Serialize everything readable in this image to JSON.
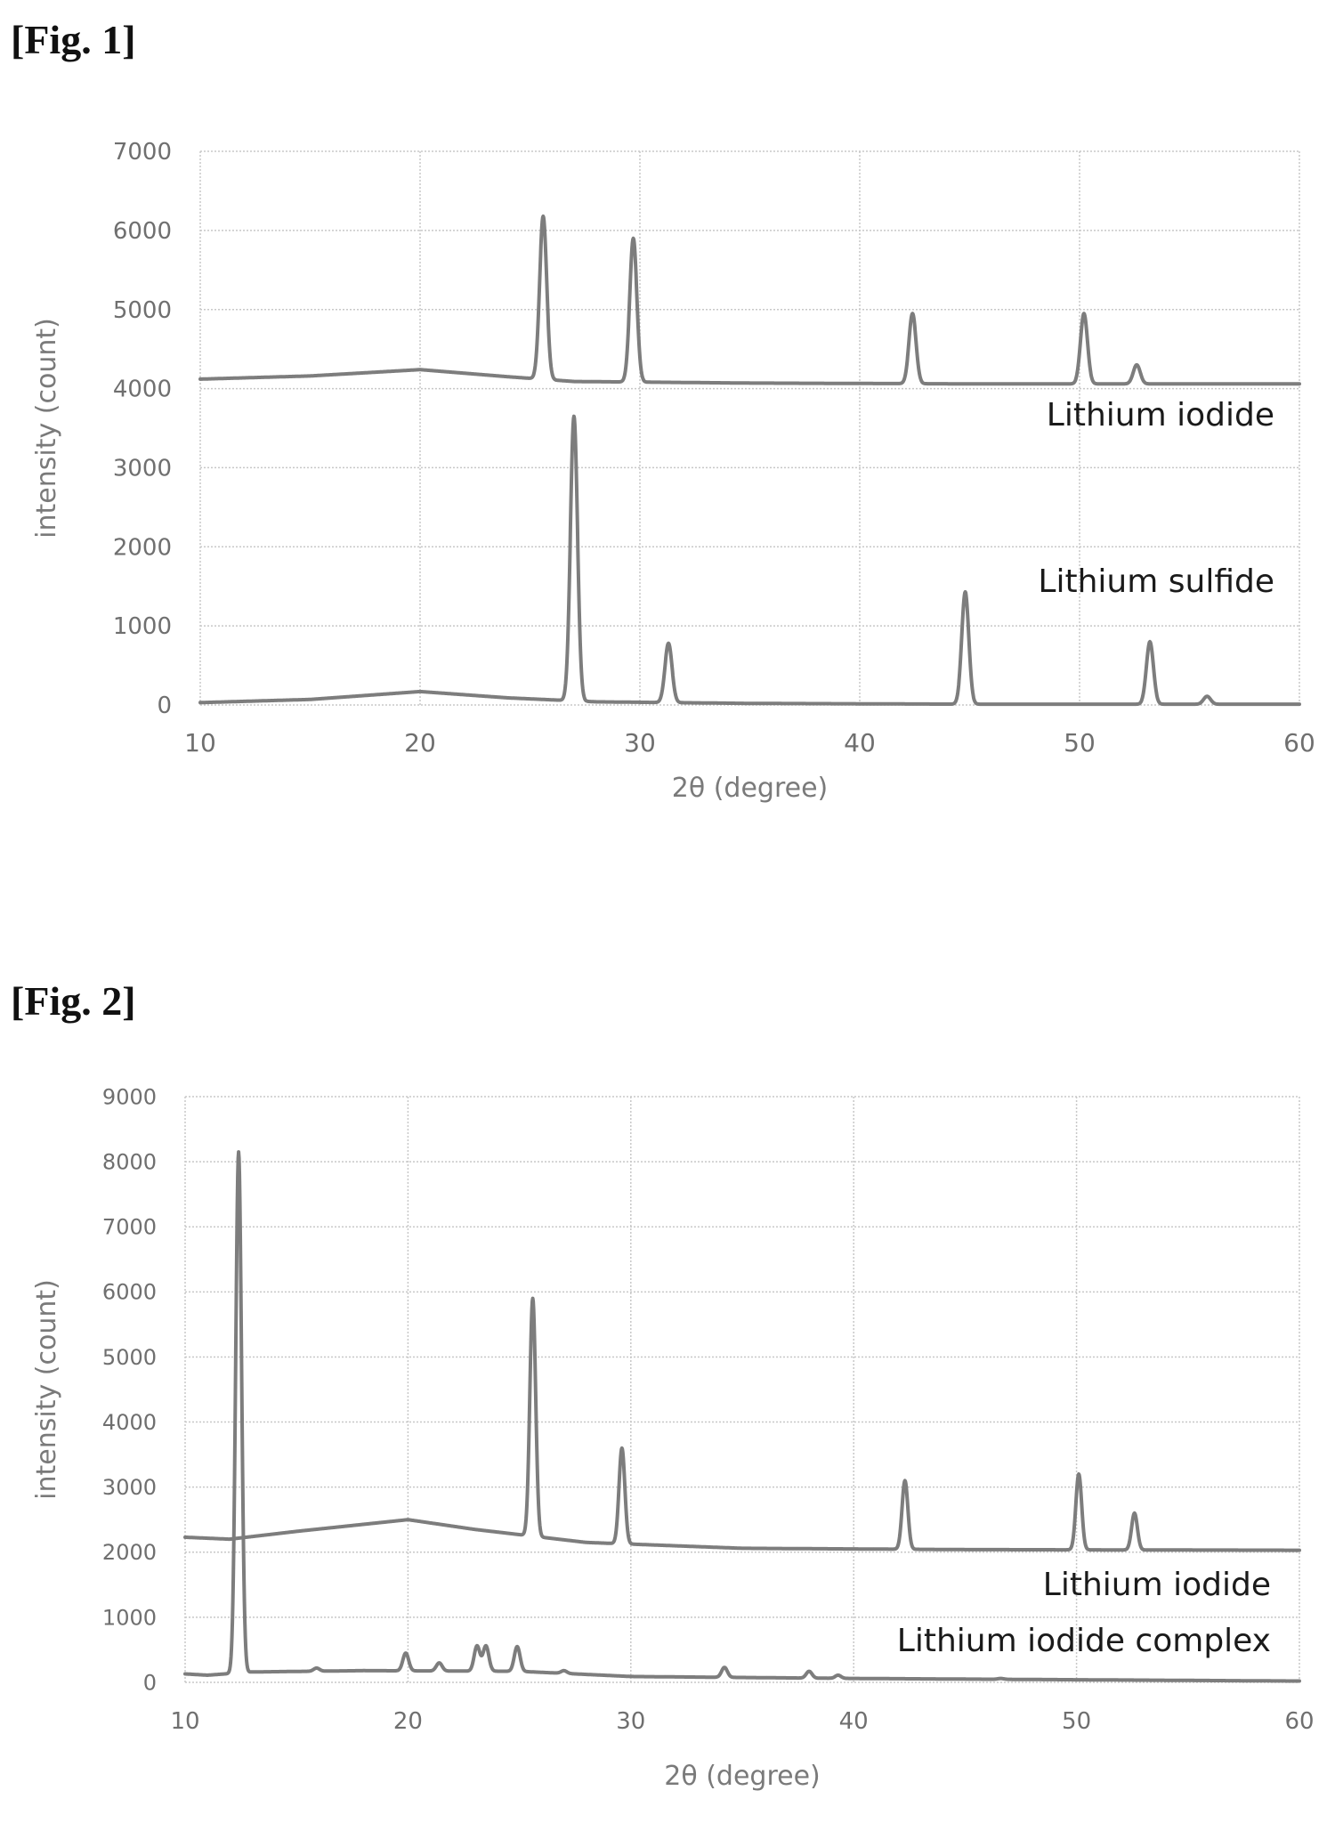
{
  "figures": [
    {
      "label": "[Fig. 1]"
    },
    {
      "label": "[Fig. 2]"
    }
  ],
  "chart_data": [
    {
      "type": "line",
      "title": "",
      "xlabel": "2θ (degree)",
      "ylabel": "intensity (count)",
      "xlim": [
        10,
        60
      ],
      "ylim": [
        0,
        7000
      ],
      "xticks": [
        10,
        20,
        30,
        40,
        50,
        60
      ],
      "yticks": [
        0,
        1000,
        2000,
        3000,
        4000,
        5000,
        6000,
        7000
      ],
      "grid": true,
      "series": [
        {
          "name": "Lithium iodide",
          "color": "#7d7d7d",
          "baseline": [
            [
              10,
              4120
            ],
            [
              15,
              4160
            ],
            [
              20,
              4240
            ],
            [
              24,
              4150
            ],
            [
              27,
              4090
            ],
            [
              35,
              4070
            ],
            [
              45,
              4060
            ],
            [
              60,
              4060
            ]
          ],
          "peaks": [
            [
              25.6,
              6180
            ],
            [
              29.7,
              5900
            ],
            [
              42.4,
              4950
            ],
            [
              50.2,
              4950
            ],
            [
              52.6,
              4300
            ]
          ]
        },
        {
          "name": "Lithium sulfide",
          "color": "#7d7d7d",
          "baseline": [
            [
              10,
              30
            ],
            [
              15,
              70
            ],
            [
              20,
              170
            ],
            [
              24,
              90
            ],
            [
              28,
              40
            ],
            [
              35,
              20
            ],
            [
              45,
              10
            ],
            [
              60,
              10
            ]
          ],
          "peaks": [
            [
              27.0,
              3650
            ],
            [
              31.3,
              780
            ],
            [
              44.8,
              1430
            ],
            [
              53.2,
              800
            ],
            [
              55.8,
              110
            ]
          ]
        }
      ]
    },
    {
      "type": "line",
      "title": "",
      "xlabel": "2θ (degree)",
      "ylabel": "intensity (count)",
      "xlim": [
        10,
        60
      ],
      "ylim": [
        0,
        9000
      ],
      "xticks": [
        10,
        20,
        30,
        40,
        50,
        60
      ],
      "yticks": [
        0,
        1000,
        2000,
        3000,
        4000,
        5000,
        6000,
        7000,
        8000,
        9000
      ],
      "grid": true,
      "series": [
        {
          "name": "Lithium iodide",
          "color": "#7d7d7d",
          "baseline": [
            [
              10,
              2230
            ],
            [
              12,
              2200
            ],
            [
              15,
              2320
            ],
            [
              20,
              2500
            ],
            [
              23,
              2350
            ],
            [
              28,
              2150
            ],
            [
              35,
              2060
            ],
            [
              45,
              2040
            ],
            [
              60,
              2030
            ]
          ],
          "peaks": [
            [
              25.6,
              5900
            ],
            [
              29.6,
              3600
            ],
            [
              42.3,
              3100
            ],
            [
              50.1,
              3200
            ],
            [
              52.6,
              2600
            ]
          ]
        },
        {
          "name": "Lithium iodide complex",
          "color": "#7d7d7d",
          "baseline": [
            [
              10,
              130
            ],
            [
              11,
              110
            ],
            [
              13,
              160
            ],
            [
              18,
              180
            ],
            [
              25,
              170
            ],
            [
              30,
              90
            ],
            [
              40,
              60
            ],
            [
              50,
              40
            ],
            [
              60,
              20
            ]
          ],
          "peaks": [
            [
              12.4,
              8150
            ],
            [
              15.9,
              220
            ],
            [
              19.9,
              450
            ],
            [
              21.4,
              300
            ],
            [
              23.1,
              560
            ],
            [
              23.5,
              560
            ],
            [
              24.9,
              550
            ],
            [
              27.0,
              180
            ],
            [
              34.2,
              230
            ],
            [
              38.0,
              170
            ],
            [
              39.3,
              110
            ],
            [
              46.6,
              60
            ]
          ]
        }
      ]
    }
  ]
}
